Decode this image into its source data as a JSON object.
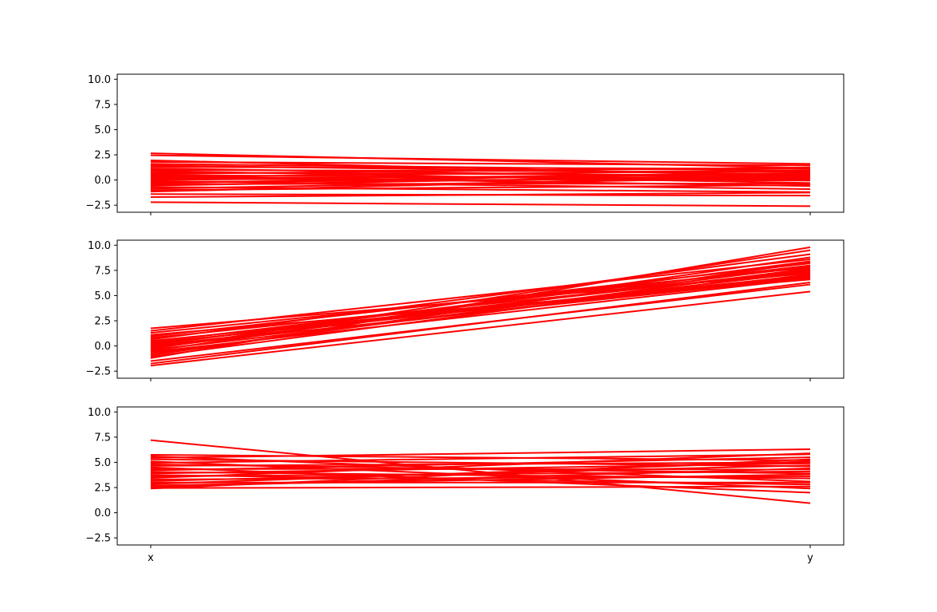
{
  "figure": {
    "background": "#ffffff"
  },
  "chart_data": [
    {
      "type": "line",
      "panel": "top",
      "categories": [
        "x",
        "y"
      ],
      "show_xticklabels": false,
      "ylim": [
        -3.2,
        10.5
      ],
      "yticks": [
        -2.5,
        0.0,
        2.5,
        5.0,
        7.5,
        10.0
      ],
      "ytick_labels": [
        "−2.5",
        "0.0",
        "2.5",
        "5.0",
        "7.5",
        "10.0"
      ],
      "xtick_labels": [
        "x",
        "y"
      ],
      "grid": false,
      "color": "#ff0000",
      "series": [
        {
          "values": [
            2.65,
            1.2
          ]
        },
        {
          "values": [
            2.45,
            1.6
          ]
        },
        {
          "values": [
            1.95,
            0.35
          ]
        },
        {
          "values": [
            1.8,
            1.45
          ]
        },
        {
          "values": [
            1.6,
            0.9
          ]
        },
        {
          "values": [
            1.45,
            0.55
          ]
        },
        {
          "values": [
            1.3,
            1.1
          ]
        },
        {
          "values": [
            1.15,
            0.2
          ]
        },
        {
          "values": [
            1.0,
            0.8
          ]
        },
        {
          "values": [
            0.9,
            -0.3
          ]
        },
        {
          "values": [
            0.75,
            0.45
          ]
        },
        {
          "values": [
            0.6,
            1.25
          ]
        },
        {
          "values": [
            0.5,
            0.05
          ]
        },
        {
          "values": [
            0.4,
            -0.6
          ]
        },
        {
          "values": [
            0.3,
            0.95
          ]
        },
        {
          "values": [
            0.2,
            0.3
          ]
        },
        {
          "values": [
            0.1,
            -0.05
          ]
        },
        {
          "values": [
            0.0,
            0.65
          ]
        },
        {
          "values": [
            -0.1,
            -0.9
          ]
        },
        {
          "values": [
            -0.2,
            0.15
          ]
        },
        {
          "values": [
            -0.3,
            0.7
          ]
        },
        {
          "values": [
            -0.4,
            -0.35
          ]
        },
        {
          "values": [
            -0.55,
            0.5
          ]
        },
        {
          "values": [
            -0.7,
            -1.2
          ]
        },
        {
          "values": [
            -0.85,
            0.25
          ]
        },
        {
          "values": [
            -1.0,
            -0.5
          ]
        },
        {
          "values": [
            -1.15,
            0.4
          ]
        },
        {
          "values": [
            -1.4,
            -1.55
          ]
        },
        {
          "values": [
            -1.7,
            -1.25
          ]
        },
        {
          "values": [
            -2.2,
            -2.6
          ]
        }
      ]
    },
    {
      "type": "line",
      "panel": "middle",
      "categories": [
        "x",
        "y"
      ],
      "show_xticklabels": false,
      "ylim": [
        -3.2,
        10.5
      ],
      "yticks": [
        -2.5,
        0.0,
        2.5,
        5.0,
        7.5,
        10.0
      ],
      "ytick_labels": [
        "−2.5",
        "0.0",
        "2.5",
        "5.0",
        "7.5",
        "10.0"
      ],
      "xtick_labels": [
        "x",
        "y"
      ],
      "grid": false,
      "color": "#ff0000",
      "series": [
        {
          "values": [
            1.75,
            7.2
          ]
        },
        {
          "values": [
            1.5,
            8.6
          ]
        },
        {
          "values": [
            1.3,
            7.8
          ]
        },
        {
          "values": [
            1.1,
            6.6
          ]
        },
        {
          "values": [
            0.95,
            8.2
          ]
        },
        {
          "values": [
            0.8,
            7.4
          ]
        },
        {
          "values": [
            0.65,
            9.1
          ]
        },
        {
          "values": [
            0.5,
            7.0
          ]
        },
        {
          "values": [
            0.4,
            8.0
          ]
        },
        {
          "values": [
            0.3,
            6.9
          ]
        },
        {
          "values": [
            0.2,
            7.6
          ]
        },
        {
          "values": [
            0.1,
            8.4
          ]
        },
        {
          "values": [
            0.0,
            7.3
          ]
        },
        {
          "values": [
            -0.1,
            6.8
          ]
        },
        {
          "values": [
            -0.2,
            7.9
          ]
        },
        {
          "values": [
            -0.3,
            9.5
          ]
        },
        {
          "values": [
            -0.4,
            7.1
          ]
        },
        {
          "values": [
            -0.5,
            8.8
          ]
        },
        {
          "values": [
            -0.6,
            6.7
          ]
        },
        {
          "values": [
            -0.75,
            7.7
          ]
        },
        {
          "values": [
            -0.9,
            8.3
          ]
        },
        {
          "values": [
            -1.05,
            7.5
          ]
        },
        {
          "values": [
            -1.2,
            9.8
          ]
        },
        {
          "values": [
            -1.5,
            6.1
          ]
        },
        {
          "values": [
            -1.75,
            6.3
          ]
        },
        {
          "values": [
            -1.95,
            5.4
          ]
        }
      ]
    },
    {
      "type": "line",
      "panel": "bottom",
      "categories": [
        "x",
        "y"
      ],
      "show_xticklabels": true,
      "ylim": [
        -3.2,
        10.5
      ],
      "yticks": [
        -2.5,
        0.0,
        2.5,
        5.0,
        7.5,
        10.0
      ],
      "ytick_labels": [
        "−2.5",
        "0.0",
        "2.5",
        "5.0",
        "7.5",
        "10.0"
      ],
      "xtick_labels": [
        "x",
        "y"
      ],
      "grid": false,
      "color": "#ff0000",
      "series": [
        {
          "values": [
            7.2,
            0.95
          ]
        },
        {
          "values": [
            5.75,
            5.2
          ]
        },
        {
          "values": [
            5.6,
            3.1
          ]
        },
        {
          "values": [
            5.45,
            6.3
          ]
        },
        {
          "values": [
            5.3,
            4.6
          ]
        },
        {
          "values": [
            5.1,
            2.4
          ]
        },
        {
          "values": [
            4.95,
            5.8
          ]
        },
        {
          "values": [
            4.8,
            3.9
          ]
        },
        {
          "values": [
            4.65,
            5.0
          ]
        },
        {
          "values": [
            4.5,
            2.0
          ]
        },
        {
          "values": [
            4.35,
            4.3
          ]
        },
        {
          "values": [
            4.2,
            5.5
          ]
        },
        {
          "values": [
            4.05,
            3.4
          ]
        },
        {
          "values": [
            3.9,
            4.9
          ]
        },
        {
          "values": [
            3.75,
            2.8
          ]
        },
        {
          "values": [
            3.6,
            4.1
          ]
        },
        {
          "values": [
            3.45,
            5.9
          ]
        },
        {
          "values": [
            3.3,
            3.6
          ]
        },
        {
          "values": [
            3.15,
            4.7
          ]
        },
        {
          "values": [
            3.0,
            3.0
          ]
        },
        {
          "values": [
            2.85,
            5.1
          ]
        },
        {
          "values": [
            2.7,
            3.8
          ]
        },
        {
          "values": [
            2.55,
            4.4
          ]
        },
        {
          "values": [
            2.45,
            2.6
          ]
        },
        {
          "values": [
            2.4,
            5.3
          ]
        }
      ]
    }
  ]
}
